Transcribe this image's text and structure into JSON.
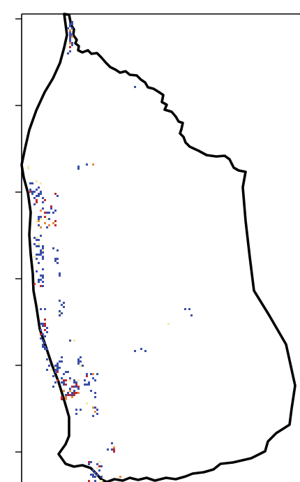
{
  "figure": {
    "type": "map",
    "description_visible_text": "",
    "colors": {
      "background": "#ffffff",
      "boundary": "#000000",
      "frame": "#000000",
      "low": "#3a4fa8",
      "mid": "#f4e9a8",
      "high": "#c0282d",
      "orange": "#e98a3a"
    },
    "y_ticks_labeled": false,
    "x_ticks_labeled": false
  }
}
